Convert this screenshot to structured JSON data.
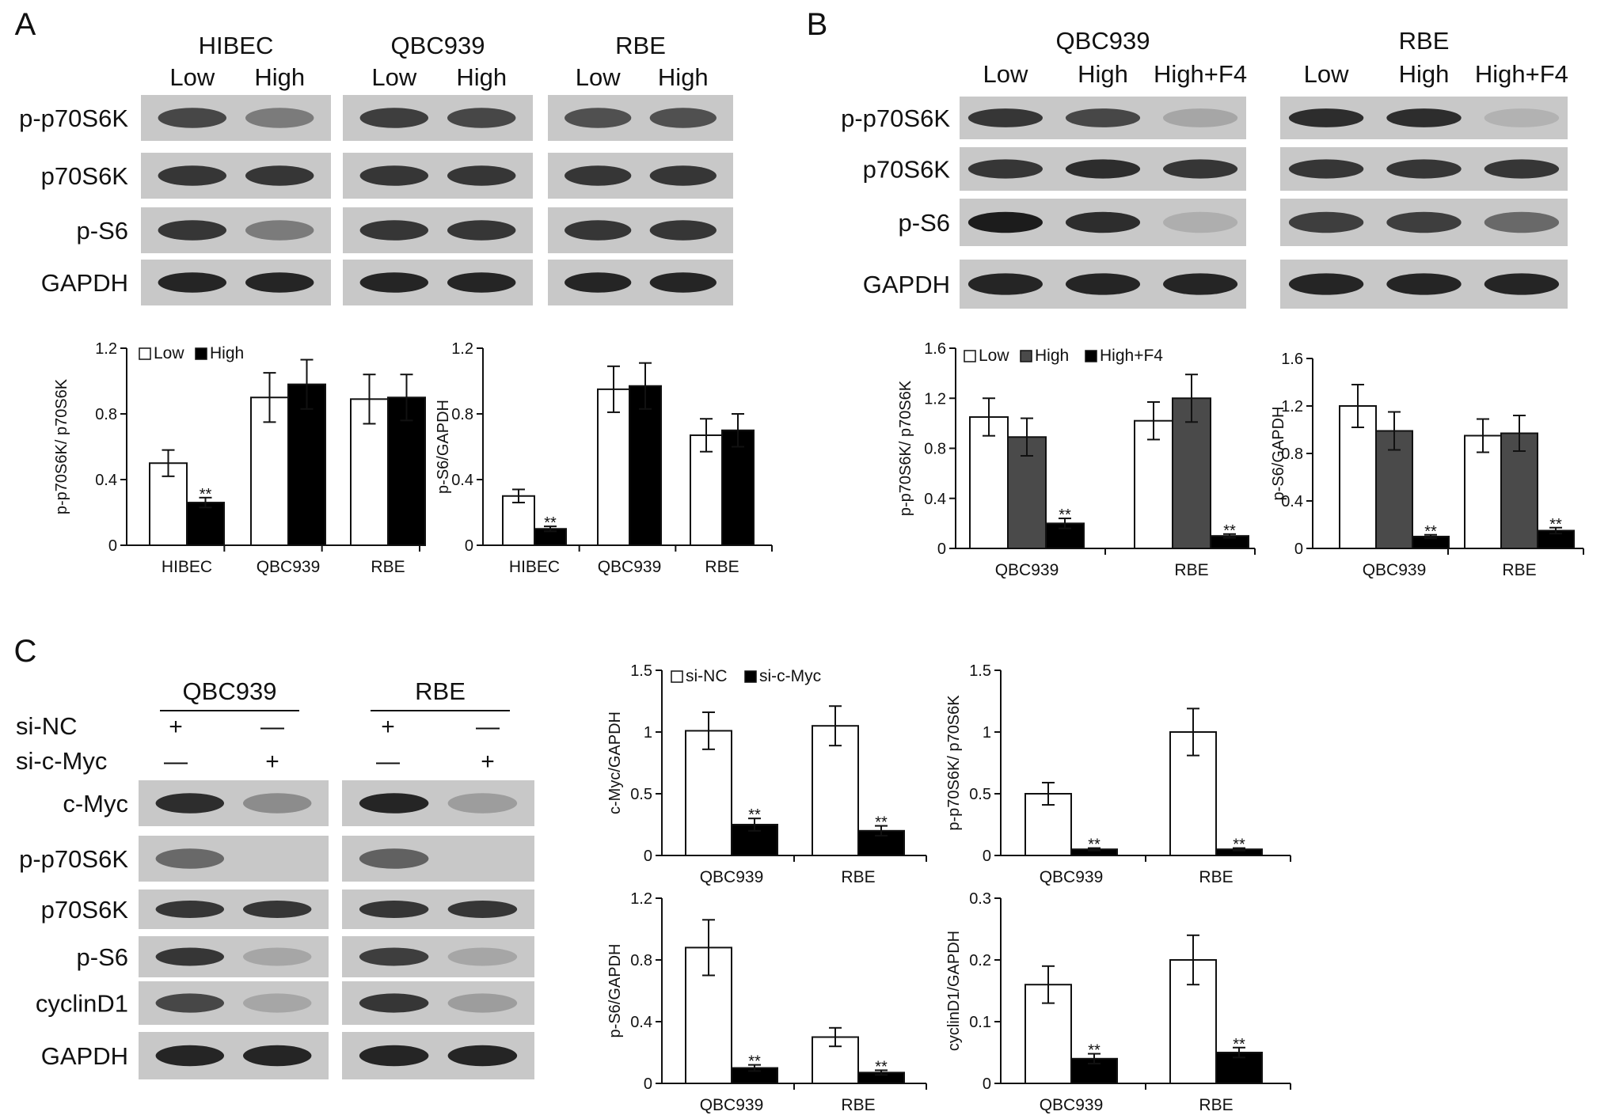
{
  "panels": {
    "A": {
      "letter": "A",
      "cell_lines": [
        "HIBEC",
        "QBC939",
        "RBE"
      ],
      "lanes": [
        "Low",
        "High"
      ],
      "proteins": [
        "p-p70S6K",
        "p70S6K",
        "p-S6",
        "GAPDH"
      ]
    },
    "B": {
      "letter": "B",
      "cell_lines": [
        "QBC939",
        "RBE"
      ],
      "lanes": [
        "Low",
        "High",
        "High+F4"
      ],
      "proteins": [
        "p-p70S6K",
        "p70S6K",
        "p-S6",
        "GAPDH"
      ]
    },
    "C": {
      "letter": "C",
      "cell_lines": [
        "QBC939",
        "RBE"
      ],
      "treatments": [
        {
          "label": "si-NC",
          "marks": [
            "+",
            "—",
            "+",
            "—"
          ]
        },
        {
          "label": "si-c-Myc",
          "marks": [
            "—",
            "+",
            "—",
            "+"
          ]
        }
      ],
      "proteins": [
        "c-Myc",
        "p-p70S6K",
        "p70S6K",
        "p-S6",
        "cyclinD1",
        "GAPDH"
      ]
    }
  },
  "significance_marker": "**",
  "colors": {
    "white_bar": "#ffffff",
    "black_bar": "#000000",
    "gray_bar": "#4a4a4a",
    "blot_bg": "#c8c8c8",
    "band": "#1c1c1c"
  },
  "chart_data": [
    {
      "id": "A1",
      "type": "bar",
      "ylabel": "p-p70S6K/ p70S6K",
      "categories": [
        "HIBEC",
        "QBC939",
        "RBE"
      ],
      "ylim": [
        0,
        1.2
      ],
      "yticks": [
        "0",
        "0.4",
        "0.8",
        "1.2"
      ],
      "legend": [
        "Low",
        "High"
      ],
      "legend_position": "top-left",
      "series": [
        {
          "name": "Low",
          "values": [
            0.5,
            0.9,
            0.89
          ],
          "errors": [
            0.08,
            0.15,
            0.15
          ],
          "color": "#ffffff"
        },
        {
          "name": "High",
          "values": [
            0.26,
            0.98,
            0.9
          ],
          "errors": [
            0.03,
            0.15,
            0.14
          ],
          "color": "#000000"
        }
      ],
      "significance": [
        [
          1,
          0
        ]
      ]
    },
    {
      "id": "A2",
      "type": "bar",
      "ylabel": "p-S6/GAPDH",
      "categories": [
        "HIBEC",
        "QBC939",
        "RBE"
      ],
      "ylim": [
        0,
        1.2
      ],
      "yticks": [
        "0",
        "0.4",
        "0.8",
        "1.2"
      ],
      "legend": [],
      "series": [
        {
          "name": "Low",
          "values": [
            0.3,
            0.95,
            0.67
          ],
          "errors": [
            0.04,
            0.14,
            0.1
          ],
          "color": "#ffffff"
        },
        {
          "name": "High",
          "values": [
            0.1,
            0.97,
            0.7
          ],
          "errors": [
            0.015,
            0.14,
            0.1
          ],
          "color": "#000000"
        }
      ],
      "significance": [
        [
          1,
          0
        ]
      ]
    },
    {
      "id": "B1",
      "type": "bar",
      "ylabel": "p-p70S6K/ p70S6K",
      "categories": [
        "QBC939",
        "RBE"
      ],
      "ylim": [
        0,
        1.6
      ],
      "yticks": [
        "0",
        "0.4",
        "0.8",
        "1.2",
        "1.6"
      ],
      "legend": [
        "Low",
        "High",
        "High+F4"
      ],
      "legend_position": "top-left",
      "series": [
        {
          "name": "Low",
          "values": [
            1.05,
            1.02
          ],
          "errors": [
            0.15,
            0.15
          ],
          "color": "#ffffff"
        },
        {
          "name": "High",
          "values": [
            0.89,
            1.2
          ],
          "errors": [
            0.15,
            0.19
          ],
          "color": "#4a4a4a"
        },
        {
          "name": "High+F4",
          "values": [
            0.2,
            0.1
          ],
          "errors": [
            0.04,
            0.015
          ],
          "color": "#000000"
        }
      ],
      "significance": [
        [
          2,
          0
        ],
        [
          2,
          1
        ]
      ]
    },
    {
      "id": "B2",
      "type": "bar",
      "ylabel": "p-S6/GAPDH",
      "categories": [
        "QBC939",
        "RBE"
      ],
      "ylim": [
        0,
        1.6
      ],
      "yticks": [
        "0",
        "0.4",
        "0.8",
        "1.2",
        "1.6"
      ],
      "legend": [],
      "series": [
        {
          "name": "Low",
          "values": [
            1.2,
            0.95
          ],
          "errors": [
            0.18,
            0.14
          ],
          "color": "#ffffff"
        },
        {
          "name": "High",
          "values": [
            0.99,
            0.97
          ],
          "errors": [
            0.16,
            0.15
          ],
          "color": "#4a4a4a"
        },
        {
          "name": "High+F4",
          "values": [
            0.1,
            0.15
          ],
          "errors": [
            0.015,
            0.025
          ],
          "color": "#000000"
        }
      ],
      "significance": [
        [
          2,
          0
        ],
        [
          2,
          1
        ]
      ]
    },
    {
      "id": "C1",
      "type": "bar",
      "ylabel": "c-Myc/GAPDH",
      "categories": [
        "QBC939",
        "RBE"
      ],
      "ylim": [
        0,
        1.5
      ],
      "yticks": [
        "0",
        "0.5",
        "1",
        "1.5"
      ],
      "legend": [
        "si-NC",
        "si-c-Myc"
      ],
      "legend_position": "top-left",
      "series": [
        {
          "name": "si-NC",
          "values": [
            1.01,
            1.05
          ],
          "errors": [
            0.15,
            0.16
          ],
          "color": "#ffffff"
        },
        {
          "name": "si-c-Myc",
          "values": [
            0.25,
            0.2
          ],
          "errors": [
            0.05,
            0.04
          ],
          "color": "#000000"
        }
      ],
      "significance": [
        [
          1,
          0
        ],
        [
          1,
          1
        ]
      ]
    },
    {
      "id": "C2",
      "type": "bar",
      "ylabel": "p-p70S6K/ p70S6K",
      "categories": [
        "QBC939",
        "RBE"
      ],
      "ylim": [
        0,
        1.5
      ],
      "yticks": [
        "0",
        "0.5",
        "1",
        "1.5"
      ],
      "legend": [],
      "series": [
        {
          "name": "si-NC",
          "values": [
            0.5,
            1.0
          ],
          "errors": [
            0.09,
            0.19
          ],
          "color": "#ffffff"
        },
        {
          "name": "si-c-Myc",
          "values": [
            0.05,
            0.05
          ],
          "errors": [
            0.01,
            0.01
          ],
          "color": "#000000"
        }
      ],
      "significance": [
        [
          1,
          0
        ],
        [
          1,
          1
        ]
      ]
    },
    {
      "id": "C3",
      "type": "bar",
      "ylabel": "p-S6/GAPDH",
      "categories": [
        "QBC939",
        "RBE"
      ],
      "ylim": [
        0,
        1.2
      ],
      "yticks": [
        "0",
        "0.4",
        "0.8",
        "1.2"
      ],
      "legend": [],
      "series": [
        {
          "name": "si-NC",
          "values": [
            0.88,
            0.3
          ],
          "errors": [
            0.18,
            0.06
          ],
          "color": "#ffffff"
        },
        {
          "name": "si-c-Myc",
          "values": [
            0.1,
            0.07
          ],
          "errors": [
            0.02,
            0.015
          ],
          "color": "#000000"
        }
      ],
      "significance": [
        [
          1,
          0
        ],
        [
          1,
          1
        ]
      ]
    },
    {
      "id": "C4",
      "type": "bar",
      "ylabel": "cyclinD1/GAPDH",
      "categories": [
        "QBC939",
        "RBE"
      ],
      "ylim": [
        0,
        0.3
      ],
      "yticks": [
        "0",
        "0.1",
        "0.2",
        "0.3"
      ],
      "legend": [],
      "series": [
        {
          "name": "si-NC",
          "values": [
            0.16,
            0.2
          ],
          "errors": [
            0.03,
            0.04
          ],
          "color": "#ffffff"
        },
        {
          "name": "si-c-Myc",
          "values": [
            0.04,
            0.05
          ],
          "errors": [
            0.008,
            0.008
          ],
          "color": "#000000"
        }
      ],
      "significance": [
        [
          1,
          0
        ],
        [
          1,
          1
        ]
      ]
    }
  ]
}
